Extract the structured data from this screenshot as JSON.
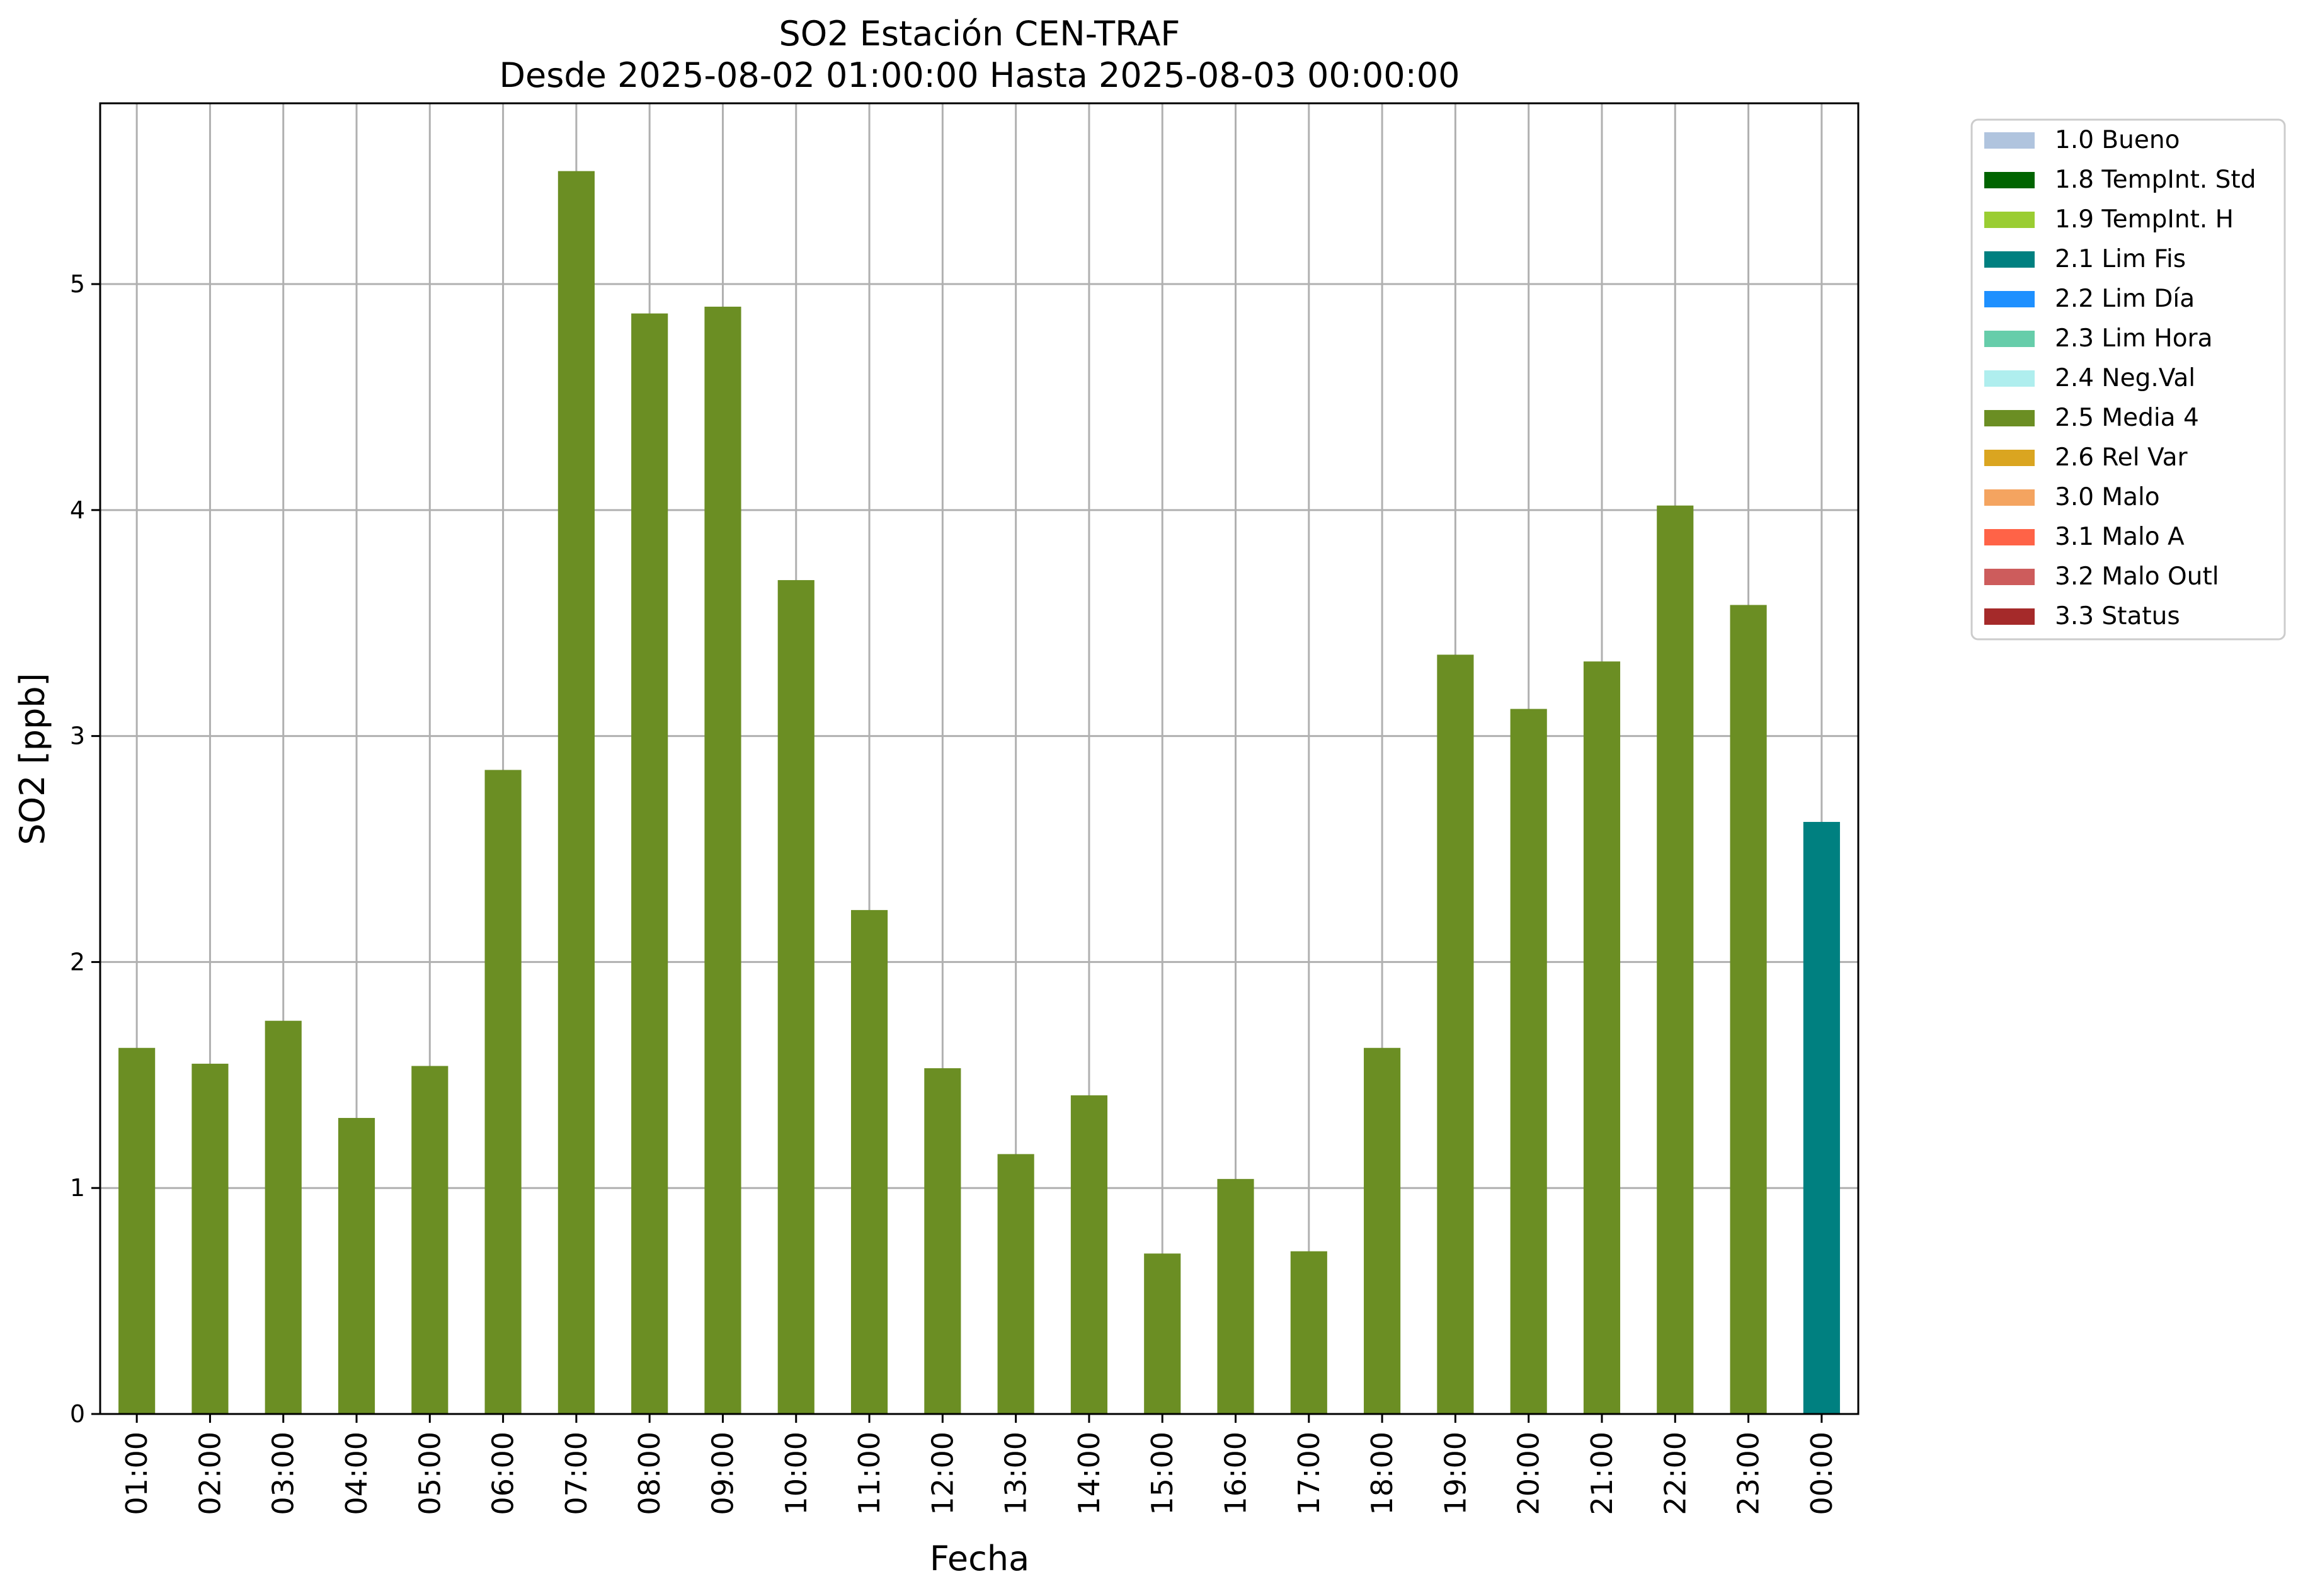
{
  "chart_data": {
    "type": "bar",
    "title": "SO2 Estación CEN-TRAF",
    "subtitle": "Desde 2025-08-02 01:00:00 Hasta 2025-08-03 00:00:00",
    "xlabel": "Fecha",
    "ylabel": "SO2 [ppb]",
    "ylim": [
      0,
      5.8
    ],
    "yticks": [
      "0",
      "1",
      "2",
      "3",
      "4",
      "5"
    ],
    "grid": true,
    "legend_position": "outside-top-right",
    "categories": [
      "01:00",
      "02:00",
      "03:00",
      "04:00",
      "05:00",
      "06:00",
      "07:00",
      "08:00",
      "09:00",
      "10:00",
      "11:00",
      "12:00",
      "13:00",
      "14:00",
      "15:00",
      "16:00",
      "17:00",
      "18:00",
      "19:00",
      "20:00",
      "21:00",
      "22:00",
      "23:00",
      "00:00"
    ],
    "values": [
      1.62,
      1.55,
      1.74,
      1.31,
      1.54,
      2.85,
      5.5,
      4.87,
      4.9,
      3.69,
      2.23,
      1.53,
      1.15,
      1.41,
      0.71,
      1.04,
      0.72,
      1.62,
      3.36,
      3.12,
      3.33,
      4.02,
      3.58,
      2.62
    ],
    "flags": [
      "2.5 Media 4",
      "2.5 Media 4",
      "2.5 Media 4",
      "2.5 Media 4",
      "2.5 Media 4",
      "2.5 Media 4",
      "2.5 Media 4",
      "2.5 Media 4",
      "2.5 Media 4",
      "2.5 Media 4",
      "2.5 Media 4",
      "2.5 Media 4",
      "2.5 Media 4",
      "2.5 Media 4",
      "2.5 Media 4",
      "2.5 Media 4",
      "2.5 Media 4",
      "2.5 Media 4",
      "2.5 Media 4",
      "2.5 Media 4",
      "2.5 Media 4",
      "2.5 Media 4",
      "2.5 Media 4",
      "2.1 Lim Fis"
    ],
    "legend": [
      {
        "name": "1.0 Bueno",
        "color": "#b0c4de"
      },
      {
        "name": "1.8 TempInt. Std",
        "color": "#006400"
      },
      {
        "name": "1.9 TempInt. H",
        "color": "#9acd32"
      },
      {
        "name": "2.1 Lim Fis",
        "color": "#008080"
      },
      {
        "name": "2.2 Lim Día",
        "color": "#1e90ff"
      },
      {
        "name": "2.3 Lim Hora",
        "color": "#66cdaa"
      },
      {
        "name": "2.4 Neg.Val",
        "color": "#afeeee"
      },
      {
        "name": "2.5 Media 4",
        "color": "#6b8e23"
      },
      {
        "name": "2.6 Rel Var",
        "color": "#daa520"
      },
      {
        "name": "3.0 Malo",
        "color": "#f4a460"
      },
      {
        "name": "3.1 Malo A",
        "color": "#ff6347"
      },
      {
        "name": "3.2 Malo Outl",
        "color": "#cd5c5c"
      },
      {
        "name": "3.3 Status",
        "color": "#a52a2a"
      }
    ]
  }
}
